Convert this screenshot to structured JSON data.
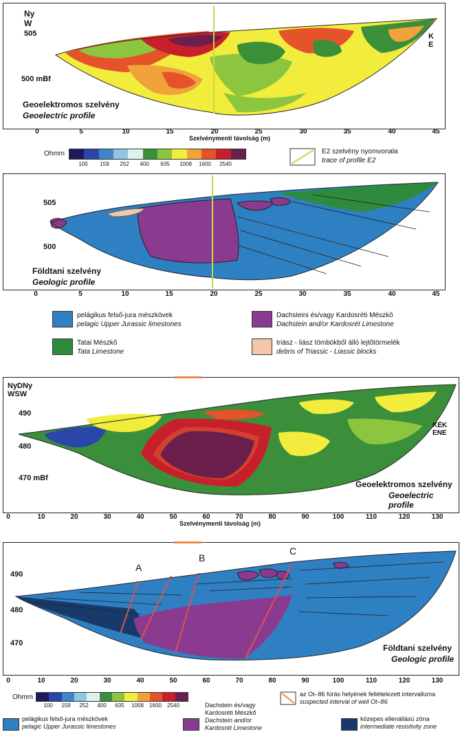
{
  "panel1": {
    "dir_left_1": "Ny",
    "dir_left_2": "W",
    "dir_right_1": "K",
    "dir_right_2": "E",
    "elev_top": "505",
    "elev_bottom": "500 mBf",
    "title": "Geoelektromos szelvény",
    "subtitle": "Geoelectric profile",
    "x_ticks": [
      "0",
      "5",
      "10",
      "15",
      "20",
      "25",
      "30",
      "35",
      "40",
      "45"
    ],
    "x_title": "Szelvénymenti távolság (m)"
  },
  "legend1": {
    "unit": "Ohmm",
    "scale_values": [
      "100",
      "159",
      "252",
      "400",
      "635",
      "1008",
      "1600",
      "2540"
    ],
    "trace_label_1": "E2 szelvény nyomvonala",
    "trace_label_2": "trace of profile E2"
  },
  "panel2": {
    "elev_top": "505",
    "elev_bottom": "500",
    "title": "Földtani szelvény",
    "subtitle": "Geologic profile",
    "x_ticks": [
      "0",
      "5",
      "10",
      "15",
      "20",
      "25",
      "30",
      "35",
      "40",
      "45"
    ]
  },
  "legend2": {
    "item1_hu": "pelágikus felső-jura mészkövek",
    "item1_en": "pelagic Upper Jurassic limestones",
    "item2_hu": "Dachsteini és/vagy Kardosréti Mészkő",
    "item2_en": "Dachstein and/or Kardosrét Limestone",
    "item3_hu": "Tatai Mészkő",
    "item3_en": "Tata Limestone",
    "item4_hu": "triász - liász tömbökből álló lejtőtörmelék",
    "item4_en": "debris of Triassic - Liassic blocks"
  },
  "panel3": {
    "dir_left_1": "NyDNy",
    "dir_left_2": "WSW",
    "dir_right_1": "KÉK",
    "dir_right_2": "ENE",
    "elev_1": "490",
    "elev_2": "480",
    "elev_3": "470 mBf",
    "title": "Geoelektromos szelvény",
    "subtitle": "Geoelectric profile",
    "x_ticks": [
      "0",
      "10",
      "20",
      "30",
      "40",
      "50",
      "60",
      "70",
      "80",
      "90",
      "100",
      "110",
      "120",
      "130"
    ],
    "x_title": "Szelvénymenti távolság (m)"
  },
  "panel4": {
    "elev_1": "490",
    "elev_2": "480",
    "elev_3": "470",
    "fault_a": "A",
    "fault_b": "B",
    "fault_c": "C",
    "title": "Földtani szelvény",
    "subtitle": "Geologic profile",
    "x_ticks": [
      "0",
      "10",
      "20",
      "30",
      "40",
      "50",
      "60",
      "70",
      "80",
      "90",
      "100",
      "110",
      "120",
      "130"
    ]
  },
  "legend3": {
    "unit": "Ohmm",
    "scale_values": [
      "100",
      "159",
      "252",
      "400",
      "635",
      "1008",
      "1600",
      "2540"
    ],
    "well_label_1": "az Ot–86 fúrás helyének feltételezett intervalluma",
    "well_label_2": "suspected interval of well Ot–86",
    "item1_hu": "pelágikus felső-jura mészkövek",
    "item1_en": "pelagic Upper Jurassic limestones",
    "item2_hu_1": "Dachstein és/vagy",
    "item2_hu_2": "Kardosréti Mészkő",
    "item2_en_1": "Dachstein and/or",
    "item2_en_2": "Kardosrét Limestone",
    "item3_hu": "közepes ellenállású zóna",
    "item3_en": "intermediate resistivity zone"
  },
  "colors": {
    "scale": [
      "#1c1a5e",
      "#2a46a8",
      "#3f86c8",
      "#8fc6e4",
      "#dff0f0",
      "#3b8f3a",
      "#8cc63f",
      "#f2ec3c",
      "#f1a23a",
      "#e4532a",
      "#c8202a",
      "#6c1f4d"
    ],
    "jurassic": "#2f7fc3",
    "dachstein": "#8b3b8f",
    "tata": "#2e8b3e",
    "debris": "#f5c6a8",
    "intermediate": "#173a6b",
    "trace": "#c8d44a",
    "well": "#f08a4a",
    "fault": "#d9534f"
  }
}
